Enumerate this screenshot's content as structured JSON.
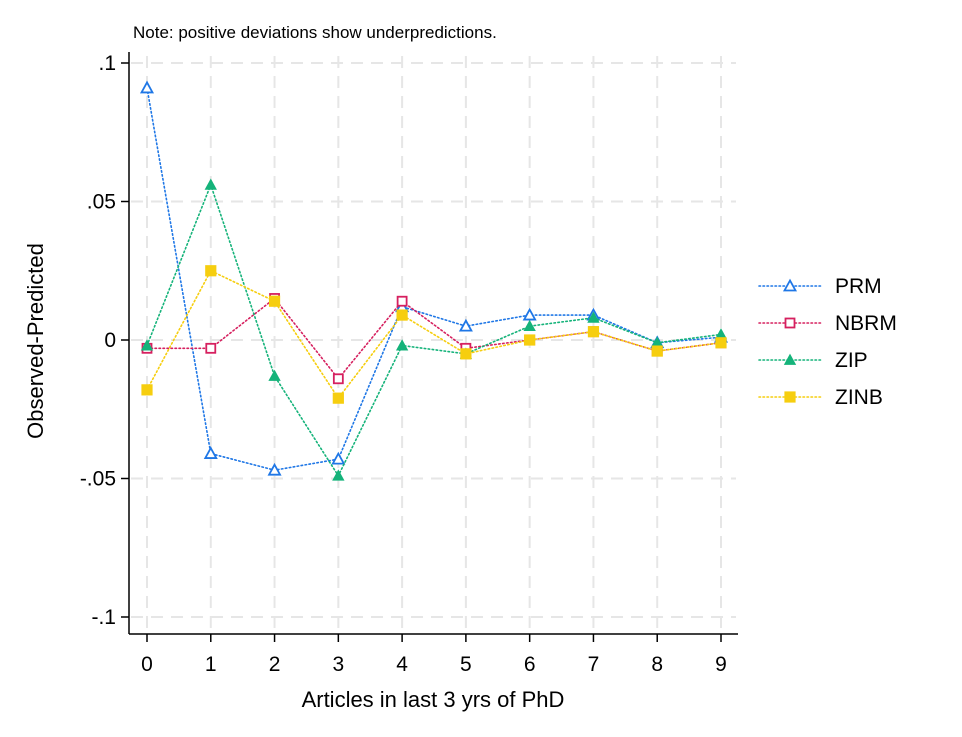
{
  "chart_data": {
    "type": "line",
    "note": "Note: positive deviations show underpredictions.",
    "xlabel": "Articles in last 3 yrs of PhD",
    "ylabel": "Observed-Predicted",
    "xlim": [
      0,
      9
    ],
    "ylim": [
      -0.1,
      0.1
    ],
    "x": [
      0,
      1,
      2,
      3,
      4,
      5,
      6,
      7,
      8,
      9
    ],
    "x_ticks": [
      {
        "value": 0,
        "label": "0"
      },
      {
        "value": 1,
        "label": "1"
      },
      {
        "value": 2,
        "label": "2"
      },
      {
        "value": 3,
        "label": "3"
      },
      {
        "value": 4,
        "label": "4"
      },
      {
        "value": 5,
        "label": "5"
      },
      {
        "value": 6,
        "label": "6"
      },
      {
        "value": 7,
        "label": "7"
      },
      {
        "value": 8,
        "label": "8"
      },
      {
        "value": 9,
        "label": "9"
      }
    ],
    "y_ticks": [
      {
        "value": 0.1,
        "label": ".1"
      },
      {
        "value": 0.05,
        "label": ".05"
      },
      {
        "value": 0,
        "label": "0"
      },
      {
        "value": -0.05,
        "label": "-.05"
      },
      {
        "value": -0.1,
        "label": "-.1"
      }
    ],
    "grid": true,
    "legend_position": "right",
    "series": [
      {
        "name": "PRM",
        "color": "#1f77e6",
        "marker": "triangle-open",
        "values": [
          0.091,
          -0.041,
          -0.047,
          -0.043,
          0.012,
          0.005,
          0.009,
          0.009,
          -0.001,
          0.001
        ]
      },
      {
        "name": "NBRM",
        "color": "#d6205f",
        "marker": "square-open",
        "values": [
          -0.003,
          -0.003,
          0.015,
          -0.014,
          0.014,
          -0.003,
          0.0,
          0.003,
          -0.004,
          -0.001
        ]
      },
      {
        "name": "ZIP",
        "color": "#15b37a",
        "marker": "triangle-filled",
        "values": [
          -0.002,
          0.056,
          -0.013,
          -0.049,
          -0.002,
          -0.005,
          0.005,
          0.008,
          -0.001,
          0.002
        ]
      },
      {
        "name": "ZINB",
        "color": "#f6ce0f",
        "marker": "square-filled",
        "values": [
          -0.018,
          0.025,
          0.014,
          -0.021,
          0.009,
          -0.005,
          0.0,
          0.003,
          -0.004,
          -0.001
        ]
      }
    ]
  }
}
